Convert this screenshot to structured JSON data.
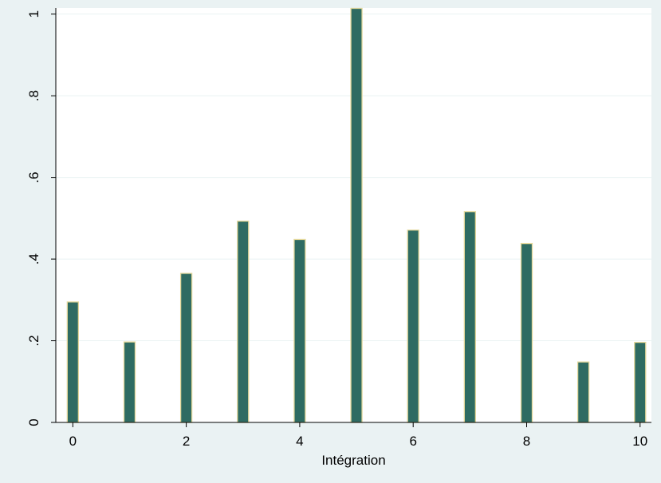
{
  "chart_data": {
    "type": "bar",
    "x": [
      0,
      1,
      2,
      3,
      4,
      5,
      6,
      7,
      8,
      9,
      10
    ],
    "values": [
      0.295,
      0.197,
      0.365,
      0.493,
      0.448,
      1.014,
      0.471,
      0.516,
      0.438,
      0.148,
      0.196
    ],
    "xlabel": "Intégration",
    "ylabel": "",
    "xlim": [
      -0.3,
      10.2
    ],
    "ylim": [
      0,
      1.015
    ],
    "xticks": [
      0,
      2,
      4,
      6,
      8,
      10
    ],
    "xtick_labels": [
      "0",
      "2",
      "4",
      "6",
      "8",
      "10"
    ],
    "yticks": [
      0,
      0.2,
      0.4,
      0.6,
      0.8,
      1
    ],
    "ytick_labels": [
      "0",
      ".2",
      ".4",
      ".6",
      ".8",
      "1"
    ],
    "grid": true,
    "colors": {
      "background": "#eaf2f3",
      "plot_area": "#ffffff",
      "bar_fill": "#2e6b62",
      "bar_edge": "#e2d79a",
      "gridline": "#eaf2f3",
      "axis": "#000000"
    }
  }
}
